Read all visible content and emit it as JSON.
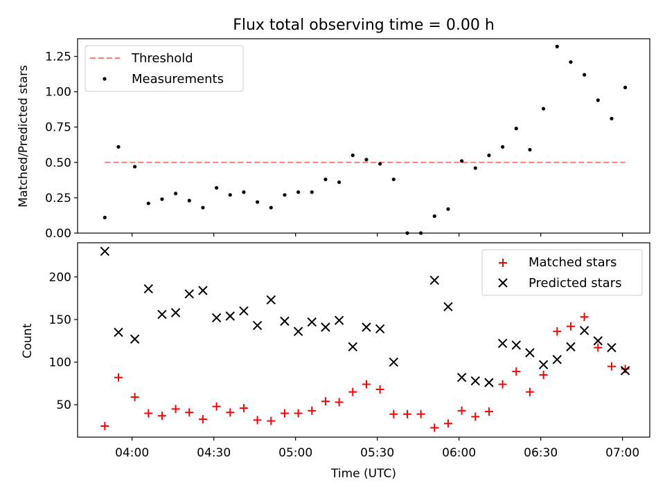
{
  "title": "Flux total observing time = 0.00 h",
  "colors": {
    "threshold": "#ff7f7f",
    "measurements": "#000000",
    "matched": "#ff0000",
    "predicted": "#000000"
  },
  "chart_data": [
    {
      "type": "scatter",
      "panel": "top",
      "ylabel": "Matched/Predicted stars",
      "ylim": [
        0,
        1.375
      ],
      "yticks": [
        0.0,
        0.25,
        0.5,
        0.75,
        1.0,
        1.25
      ],
      "ytick_labels": [
        "0.00",
        "0.25",
        "0.50",
        "0.75",
        "1.00",
        "1.25"
      ],
      "grid": false,
      "legend_position": "top-left",
      "legend": [
        "Threshold",
        "Measurements"
      ],
      "threshold": {
        "name": "Threshold",
        "y": 0.5,
        "x_range": [
          "03:50",
          "07:01"
        ],
        "style": "dashed"
      },
      "series": [
        {
          "name": "Measurements",
          "marker": "dot",
          "x": [
            "03:50",
            "03:55",
            "04:01",
            "04:06",
            "04:11",
            "04:16",
            "04:21",
            "04:26",
            "04:31",
            "04:36",
            "04:41",
            "04:46",
            "04:51",
            "04:56",
            "05:01",
            "05:06",
            "05:11",
            "05:16",
            "05:21",
            "05:26",
            "05:31",
            "05:36",
            "05:41",
            "05:46",
            "05:51",
            "05:56",
            "06:01",
            "06:06",
            "06:11",
            "06:16",
            "06:21",
            "06:26",
            "06:31",
            "06:36",
            "06:41",
            "06:46",
            "06:51",
            "06:56",
            "07:01"
          ],
          "y": [
            0.11,
            0.61,
            0.47,
            0.21,
            0.24,
            0.28,
            0.23,
            0.18,
            0.32,
            0.27,
            0.29,
            0.22,
            0.18,
            0.27,
            0.29,
            0.29,
            0.38,
            0.36,
            0.55,
            0.52,
            0.49,
            0.38,
            0.0,
            0.0,
            0.12,
            0.17,
            0.51,
            0.46,
            0.55,
            0.61,
            0.74,
            0.59,
            0.88,
            1.32,
            1.21,
            1.12,
            0.94,
            0.81,
            1.03
          ]
        }
      ]
    },
    {
      "type": "scatter",
      "panel": "bottom",
      "xlabel": "Time (UTC)",
      "ylabel": "Count",
      "xlim": [
        "03:40",
        "07:10"
      ],
      "xticks": [
        "04:00",
        "04:30",
        "05:00",
        "05:30",
        "06:00",
        "06:30",
        "07:00"
      ],
      "ylim": [
        12,
        240
      ],
      "yticks": [
        50,
        100,
        150,
        200
      ],
      "ytick_labels": [
        "50",
        "100",
        "150",
        "200"
      ],
      "grid": false,
      "legend_position": "top-right",
      "legend": [
        "Matched stars",
        "Predicted stars"
      ],
      "series": [
        {
          "name": "Matched stars",
          "marker": "plus",
          "x": [
            "03:50",
            "03:55",
            "04:01",
            "04:06",
            "04:11",
            "04:16",
            "04:21",
            "04:26",
            "04:31",
            "04:36",
            "04:41",
            "04:46",
            "04:51",
            "04:56",
            "05:01",
            "05:06",
            "05:11",
            "05:16",
            "05:21",
            "05:26",
            "05:31",
            "05:36",
            "05:41",
            "05:46",
            "05:51",
            "05:56",
            "06:01",
            "06:06",
            "06:11",
            "06:16",
            "06:21",
            "06:26",
            "06:31",
            "06:36",
            "06:41",
            "06:46",
            "06:51",
            "06:56",
            "07:01"
          ],
          "y": [
            25,
            82,
            59,
            40,
            37,
            45,
            41,
            33,
            48,
            41,
            46,
            32,
            31,
            40,
            40,
            43,
            54,
            53,
            65,
            74,
            68,
            39,
            39,
            39,
            23,
            28,
            43,
            36,
            42,
            74,
            89,
            65,
            85,
            136,
            142,
            153,
            117,
            95,
            92
          ]
        },
        {
          "name": "Predicted stars",
          "marker": "x",
          "x": [
            "03:50",
            "03:55",
            "04:01",
            "04:06",
            "04:11",
            "04:16",
            "04:21",
            "04:26",
            "04:31",
            "04:36",
            "04:41",
            "04:46",
            "04:51",
            "04:56",
            "05:01",
            "05:06",
            "05:11",
            "05:16",
            "05:21",
            "05:26",
            "05:31",
            "05:36",
            "05:51",
            "05:56",
            "06:01",
            "06:06",
            "06:11",
            "06:16",
            "06:21",
            "06:26",
            "06:31",
            "06:36",
            "06:41",
            "06:46",
            "06:51",
            "06:56",
            "07:01"
          ],
          "y": [
            230,
            135,
            127,
            186,
            156,
            158,
            180,
            184,
            152,
            154,
            160,
            143,
            173,
            148,
            136,
            147,
            141,
            149,
            118,
            141,
            139,
            100,
            196,
            165,
            82,
            78,
            76,
            122,
            120,
            111,
            97,
            103,
            118,
            137,
            125,
            117,
            90
          ]
        }
      ]
    }
  ]
}
